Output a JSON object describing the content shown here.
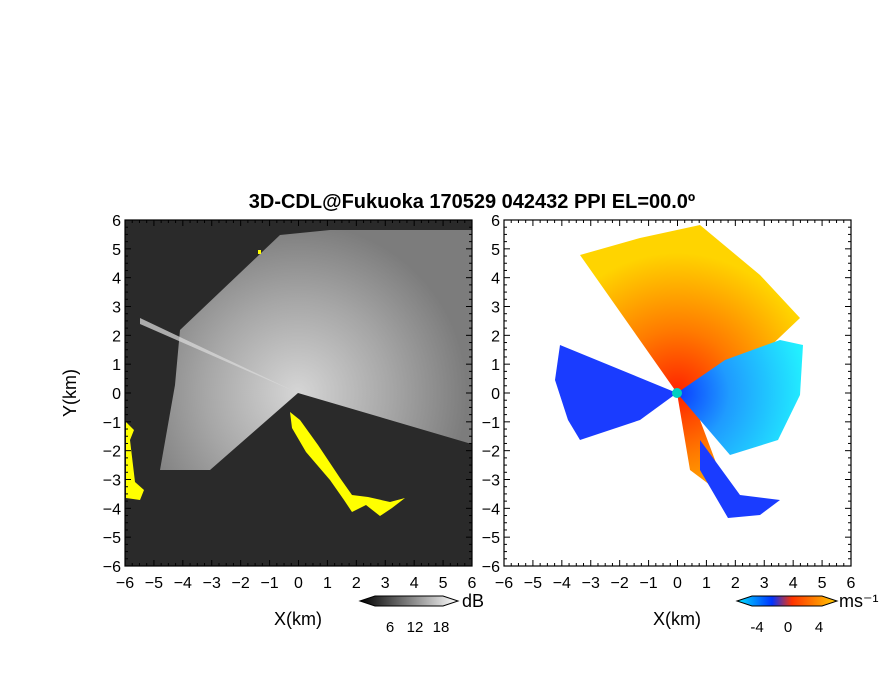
{
  "chart_data": [
    {
      "type": "heatmap",
      "panel": "left",
      "title": "3D-CDL@Fukuoka 170529 042432 PPI EL=00.0º",
      "xlabel": "X(km)",
      "ylabel": "Y(km)",
      "xlim": [
        -6,
        6
      ],
      "ylim": [
        -6,
        6
      ],
      "xticks": [
        -6,
        -5,
        -4,
        -3,
        -2,
        -1,
        0,
        1,
        2,
        3,
        4,
        5,
        6
      ],
      "yticks": [
        -6,
        -5,
        -4,
        -3,
        -2,
        -1,
        0,
        1,
        2,
        3,
        4,
        5,
        6
      ],
      "colorbar": {
        "unit": "dB",
        "ticks": [
          6,
          12,
          18
        ],
        "colors": [
          "#000000",
          "#ffffff"
        ]
      },
      "background_color": "#2a2a2a",
      "highlight_color": "#ffff00"
    },
    {
      "type": "heatmap",
      "panel": "right",
      "xlabel": "X(km)",
      "xlim": [
        -6,
        6
      ],
      "ylim": [
        -6,
        6
      ],
      "xticks": [
        -6,
        -5,
        -4,
        -3,
        -2,
        -1,
        0,
        1,
        2,
        3,
        4,
        5,
        6
      ],
      "yticks": [
        -6,
        -5,
        -4,
        -3,
        -2,
        -1,
        0,
        1,
        2,
        3,
        4,
        5,
        6
      ],
      "colorbar": {
        "unit": "ms⁻¹",
        "ticks": [
          -4,
          0,
          4
        ],
        "colors": [
          "#00e5ff",
          "#0033ff",
          "#ff3300",
          "#ffcc00"
        ]
      },
      "center_marker_color": "#00d0c0"
    }
  ]
}
